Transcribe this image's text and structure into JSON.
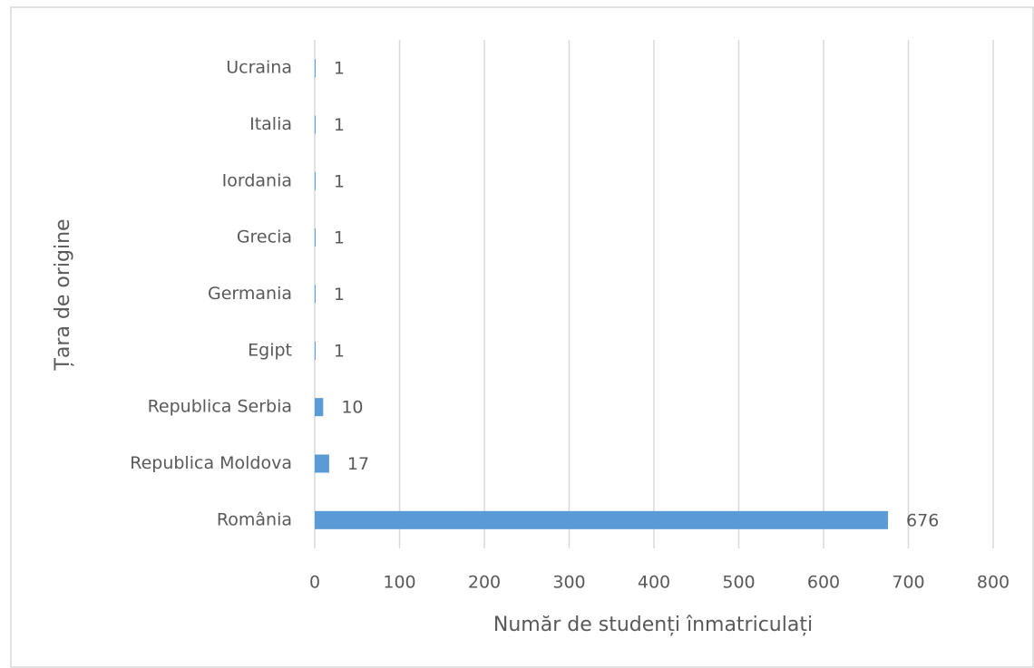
{
  "chart_data": {
    "type": "bar",
    "orientation": "horizontal",
    "categories": [
      "România",
      "Republica Moldova",
      "Republica Serbia",
      "Egipt",
      "Germania",
      "Grecia",
      "Iordania",
      "Italia",
      "Ucraina"
    ],
    "values": [
      676,
      17,
      10,
      1,
      1,
      1,
      1,
      1,
      1
    ],
    "color": "#5b9bd5",
    "x_label": "Număr de studenți înmatriculați",
    "y_label": "Țara de origine",
    "xlim": [
      0,
      800
    ],
    "xticks": [
      0,
      100,
      200,
      300,
      400,
      500,
      600,
      700,
      800
    ],
    "grid": true,
    "data_labels": true
  }
}
